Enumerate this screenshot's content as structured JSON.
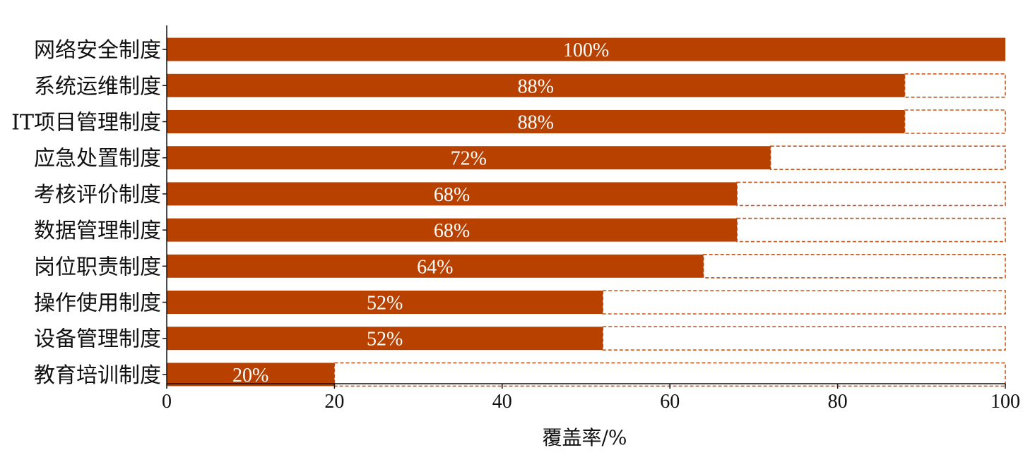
{
  "chart_data": {
    "type": "bar",
    "orientation": "horizontal",
    "categories": [
      "网络安全制度",
      "系统运维制度",
      "IT项目管理制度",
      "应急处置制度",
      "考核评价制度",
      "数据管理制度",
      "岗位职责制度",
      "操作使用制度",
      "设备管理制度",
      "教育培训制度"
    ],
    "values": [
      100,
      88,
      88,
      72,
      68,
      68,
      64,
      52,
      52,
      20
    ],
    "data_labels": [
      "100%",
      "88%",
      "88%",
      "72%",
      "68%",
      "68%",
      "64%",
      "52%",
      "52%",
      "20%"
    ],
    "xlabel": "覆盖率/%",
    "ylabel": "",
    "xlim": [
      0,
      100
    ],
    "xticks": [
      0,
      20,
      40,
      60,
      80,
      100
    ],
    "xtick_labels": [
      "0",
      "20",
      "40",
      "60",
      "80",
      "100"
    ],
    "grid": false,
    "remainder_style": "dashed-outline",
    "colors": {
      "bar": "#B84100",
      "outline": "#C8551A",
      "axis": "#111111"
    }
  }
}
